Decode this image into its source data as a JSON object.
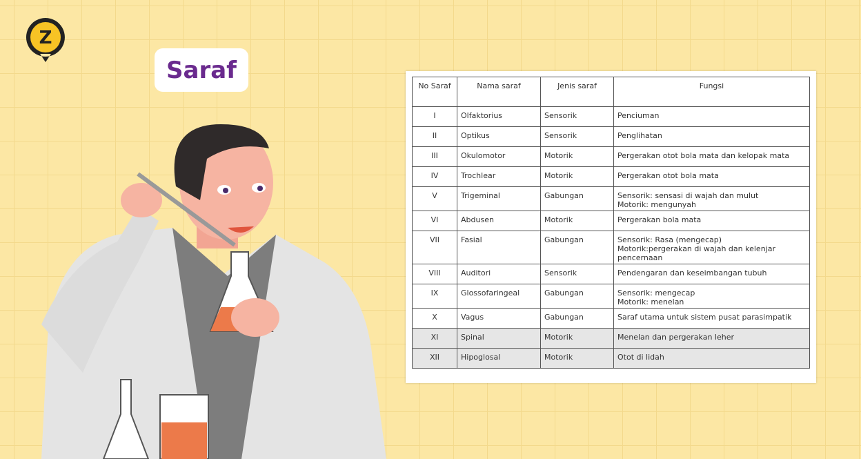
{
  "logo": "Z",
  "title": "Saraf",
  "table": {
    "header": [
      "No Saraf",
      "Nama saraf",
      "Jenis saraf",
      "Fungsi"
    ],
    "rows": [
      [
        "I",
        "Olfaktorius",
        "Sensorik",
        "Penciuman"
      ],
      [
        "II",
        "Optikus",
        "Sensorik",
        "Penglihatan"
      ],
      [
        "III",
        "Okulomotor",
        "Motorik",
        "Pergerakan otot bola mata dan kelopak mata"
      ],
      [
        "IV",
        "Trochlear",
        "Motorik",
        "Pergerakan otot bola mata"
      ],
      [
        "V",
        "Trigeminal",
        "Gabungan",
        "Sensorik: sensasi di wajah dan mulut\nMotorik: mengunyah"
      ],
      [
        "VI",
        "Abdusen",
        "Motorik",
        "Pergerakan bola mata"
      ],
      [
        "VII",
        "Fasial",
        "Gabungan",
        "Sensorik: Rasa (mengecap)\nMotorik:pergerakan di wajah dan kelenjar pencernaan"
      ],
      [
        "VIII",
        "Auditori",
        "Sensorik",
        "Pendengaran dan keseimbangan tubuh"
      ],
      [
        "IX",
        "Glossofaringeal",
        "Gabungan",
        "Sensorik: mengecap\nMotorik: menelan"
      ],
      [
        "X",
        "Vagus",
        "Gabungan",
        "Saraf utama untuk sistem pusat parasimpatik"
      ],
      [
        "XI",
        "Spinal",
        "Motorik",
        "Menelan dan pergerakan leher"
      ],
      [
        "XII",
        "Hipoglosal",
        "Motorik",
        "Otot di lidah"
      ]
    ]
  }
}
